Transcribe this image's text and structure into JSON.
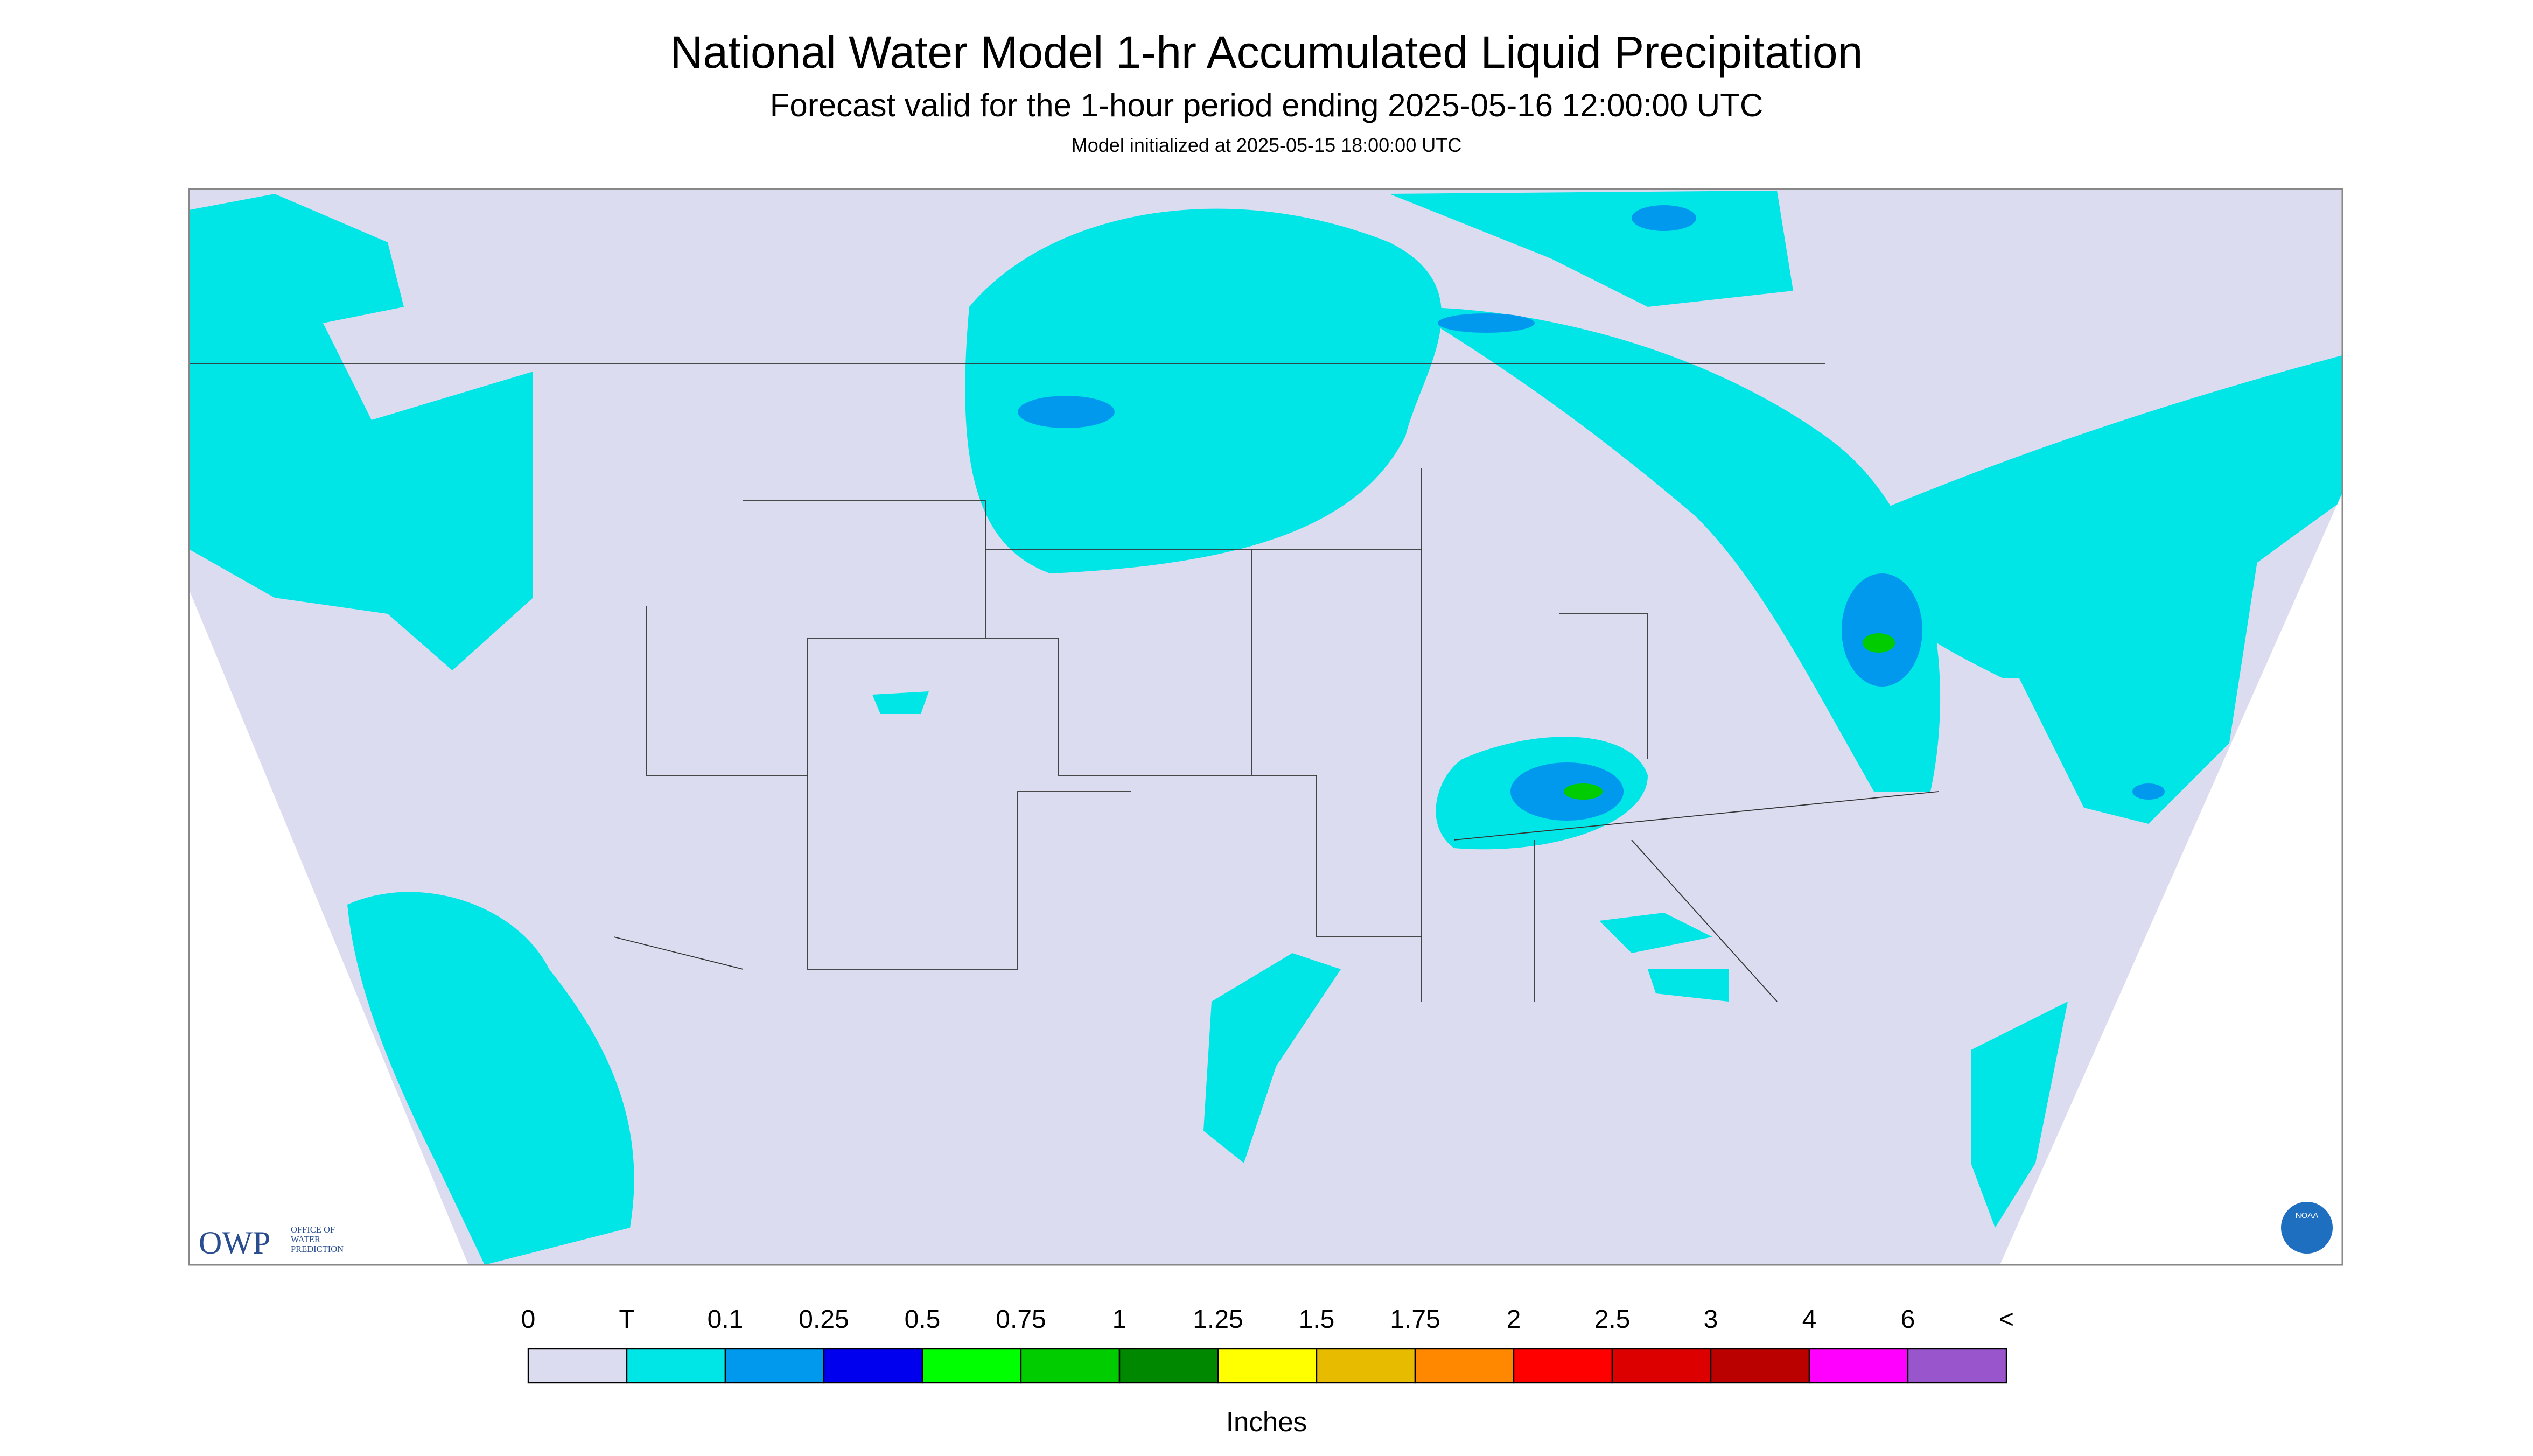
{
  "header": {
    "title": "National Water Model 1-hr Accumulated Liquid Precipitation",
    "subtitle": "Forecast valid for the 1-hour period ending 2025-05-16 12:00:00 UTC",
    "note": "Model initialized at 2025-05-15 18:00:00 UTC"
  },
  "logos": {
    "owp": "OWP",
    "owp_text": [
      "OFFICE OF",
      "WATER",
      "PREDICTION"
    ],
    "noaa": "NOAA"
  },
  "legend": {
    "labels": [
      "0",
      "T",
      "0.1",
      "0.25",
      "0.5",
      "0.75",
      "1",
      "1.25",
      "1.5",
      "1.75",
      "2",
      "2.5",
      "3",
      "4",
      "6",
      "<"
    ],
    "colors": [
      "#dcdcf0",
      "#00e5e5",
      "#0099ee",
      "#0000ee",
      "#00ff00",
      "#00cc00",
      "#008800",
      "#ffff00",
      "#e6bb00",
      "#ff8800",
      "#ff0000",
      "#dd0000",
      "#bb0000",
      "#ff00ff",
      "#9955cc"
    ],
    "unit": "Inches"
  }
}
